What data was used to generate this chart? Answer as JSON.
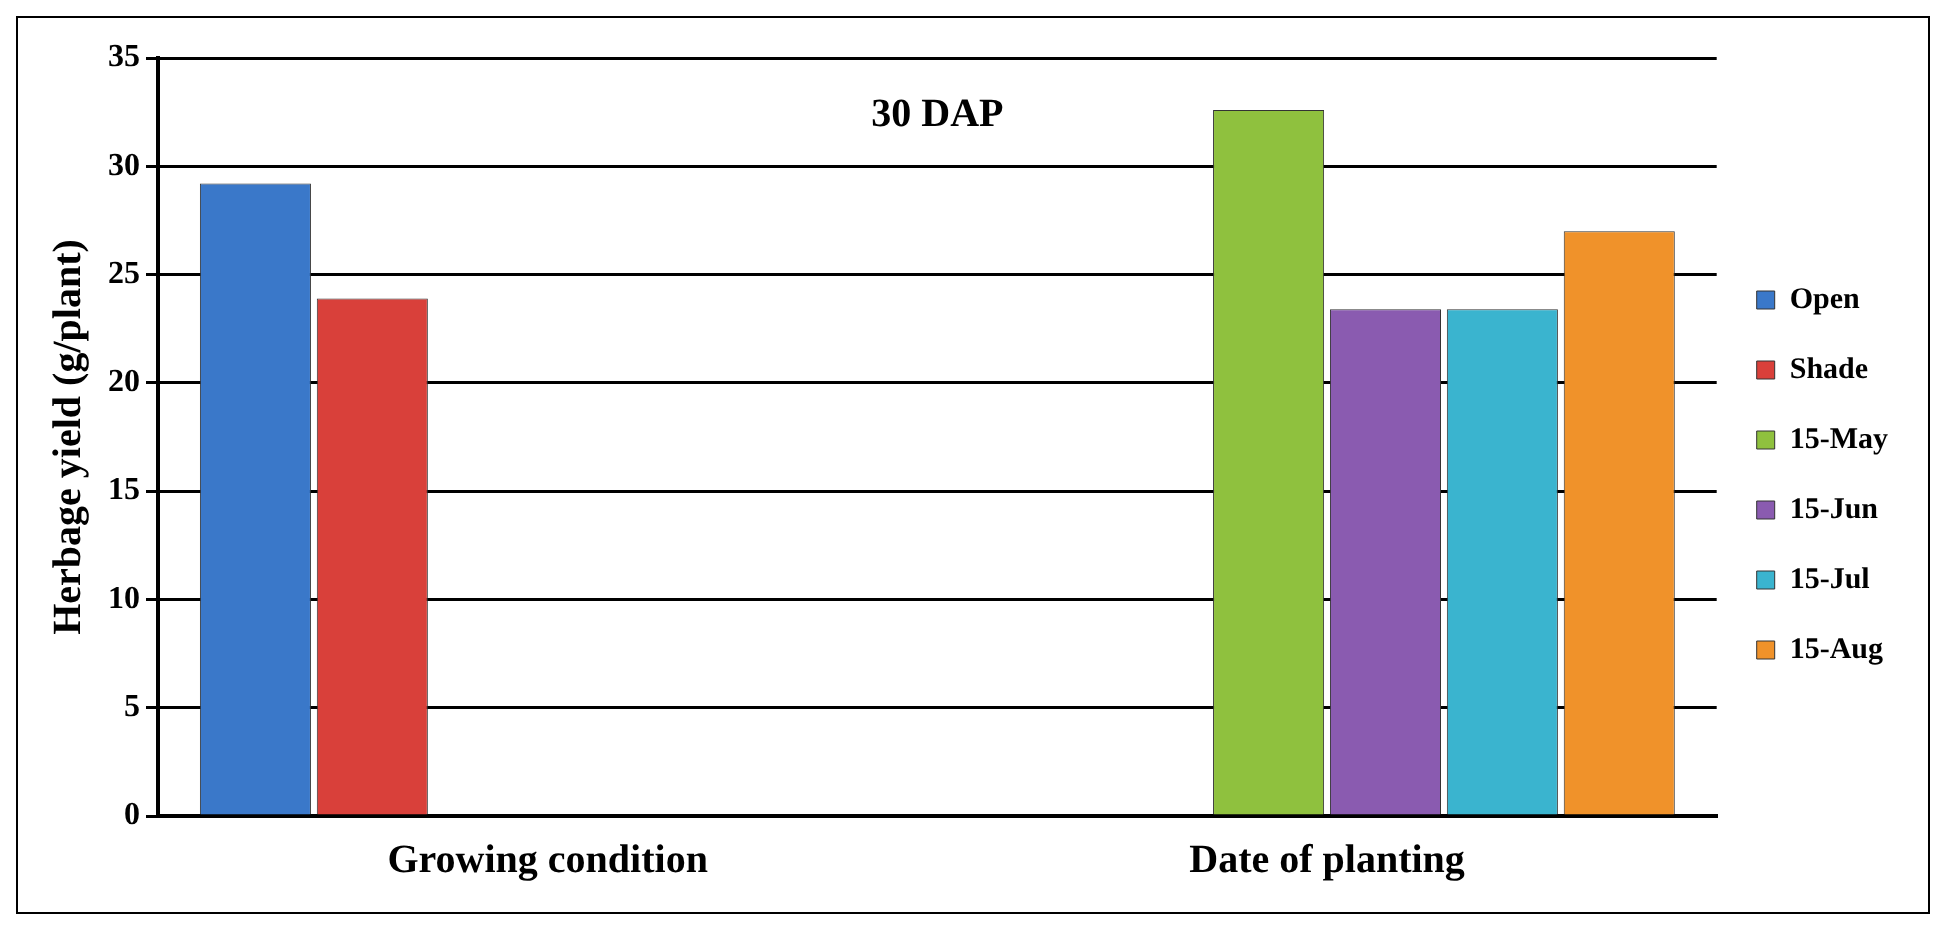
{
  "chart_data": {
    "type": "bar",
    "title": "30 DAP",
    "ylabel": "Herbage yield (g/plant)",
    "categories": [
      "Growing condition",
      "Date of planting"
    ],
    "series": [
      {
        "name": "Open",
        "color": "#3a78c9",
        "values": [
          29.2,
          null
        ]
      },
      {
        "name": "Shade",
        "color": "#d9403a",
        "values": [
          23.9,
          null
        ]
      },
      {
        "name": "15-May",
        "color": "#8fc13e",
        "values": [
          null,
          32.6
        ]
      },
      {
        "name": "15-Jun",
        "color": "#8a5bb0",
        "values": [
          null,
          23.4
        ]
      },
      {
        "name": "15-Jul",
        "color": "#3ab4cf",
        "values": [
          null,
          23.4
        ]
      },
      {
        "name": "15-Aug",
        "color": "#f0922a",
        "values": [
          null,
          27.0
        ]
      }
    ],
    "ylim": [
      0,
      35
    ],
    "yticks": [
      0,
      5,
      10,
      15,
      20,
      25,
      30,
      35
    ],
    "grid": "y",
    "legend": "right"
  }
}
